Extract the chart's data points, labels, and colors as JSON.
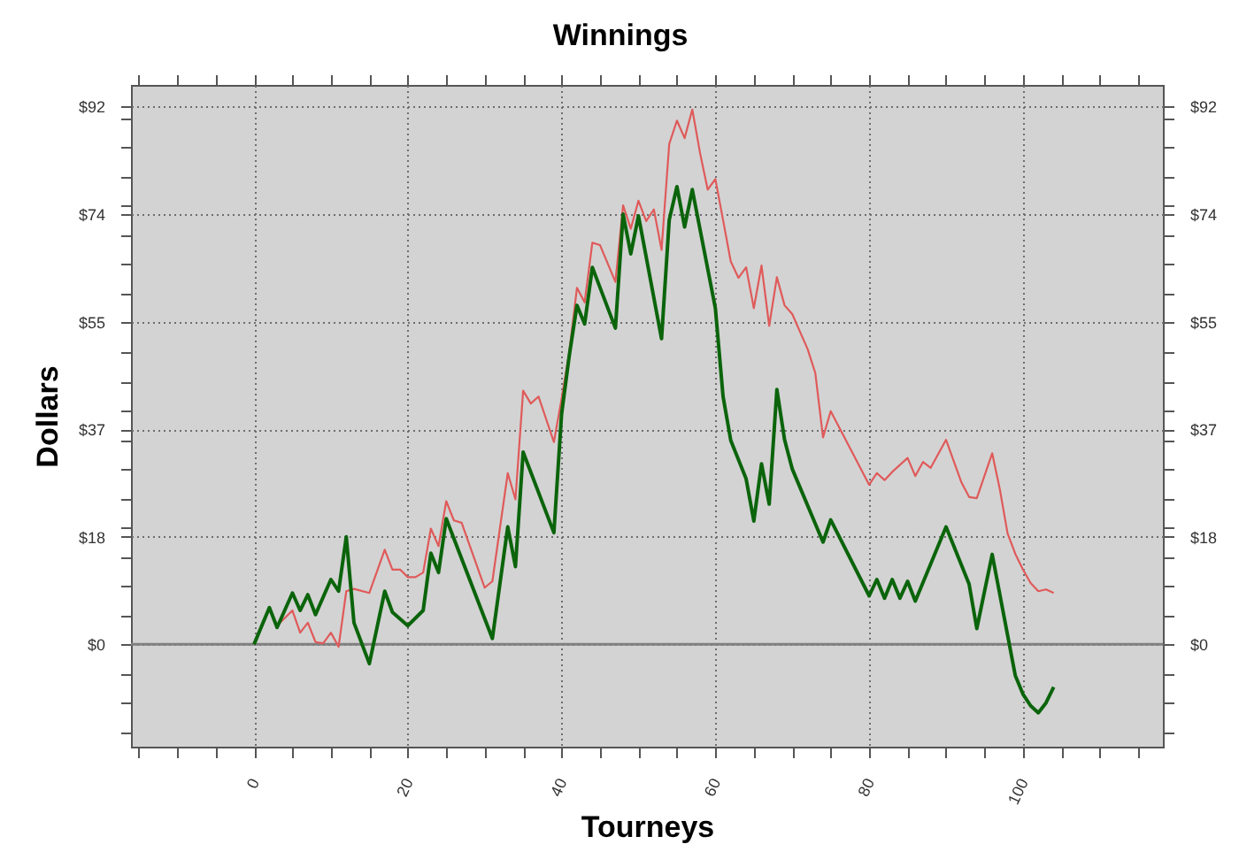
{
  "chart_data": {
    "type": "line",
    "title": "Winnings",
    "xlabel": "Tourneys",
    "ylabel": "Dollars",
    "xlim": [
      -16,
      118.2
    ],
    "xticks": [
      {
        "value": -15,
        "label": null
      },
      {
        "value": -10,
        "label": null
      },
      {
        "value": -5,
        "label": null
      },
      0,
      {
        "value": 5,
        "label": null
      },
      {
        "value": 10,
        "label": null
      },
      {
        "value": 15,
        "label": null
      },
      20,
      {
        "value": 25,
        "label": null
      },
      {
        "value": 30,
        "label": null
      },
      {
        "value": 35,
        "label": null
      },
      40,
      {
        "value": 45,
        "label": null
      },
      {
        "value": 50,
        "label": null
      },
      {
        "value": 55,
        "label": null
      },
      60,
      {
        "value": 65,
        "label": null
      },
      {
        "value": 70,
        "label": null
      },
      {
        "value": 75,
        "label": null
      },
      80,
      {
        "value": 85,
        "label": null
      },
      {
        "value": 90,
        "label": null
      },
      {
        "value": 95,
        "label": null
      },
      100,
      {
        "value": 105,
        "label": null
      },
      {
        "value": 110,
        "label": null
      },
      {
        "value": 115,
        "label": null
      }
    ],
    "ylim": [
      -17.5,
      95.7
    ],
    "yticks": [
      {
        "value": -15,
        "label": null
      },
      {
        "value": -10,
        "label": null
      },
      {
        "value": -5,
        "label": null
      },
      {
        "value": 0,
        "label": "$0"
      },
      {
        "value": 5,
        "label": null
      },
      {
        "value": 10,
        "label": null
      },
      {
        "value": 15,
        "label": null
      },
      {
        "value": 18.4,
        "label": "$18"
      },
      {
        "value": 20,
        "label": null
      },
      {
        "value": 25,
        "label": null
      },
      {
        "value": 30,
        "label": null
      },
      {
        "value": 35,
        "label": null
      },
      {
        "value": 36.8,
        "label": "$37"
      },
      {
        "value": 40,
        "label": null
      },
      {
        "value": 45,
        "label": null
      },
      {
        "value": 50,
        "label": null
      },
      {
        "value": 55,
        "label": null
      },
      {
        "value": 55.2,
        "label": "$55"
      },
      {
        "value": 60,
        "label": null
      },
      {
        "value": 65,
        "label": null
      },
      {
        "value": 70,
        "label": null
      },
      {
        "value": 73.6,
        "label": "$74"
      },
      {
        "value": 75,
        "label": null
      },
      {
        "value": 80,
        "label": null
      },
      {
        "value": 85,
        "label": null
      },
      {
        "value": 90,
        "label": null
      },
      {
        "value": 92,
        "label": "$92"
      }
    ],
    "y2lim": [
      -17.5,
      95.7
    ],
    "y2ticks": [
      {
        "value": -15,
        "label": null
      },
      {
        "value": -10,
        "label": null
      },
      {
        "value": -5,
        "label": null
      },
      {
        "value": 0,
        "label": "$0"
      },
      {
        "value": 5,
        "label": null
      },
      {
        "value": 10,
        "label": null
      },
      {
        "value": 15,
        "label": null
      },
      {
        "value": 18.4,
        "label": "$18"
      },
      {
        "value": 20,
        "label": null
      },
      {
        "value": 25,
        "label": null
      },
      {
        "value": 30,
        "label": null
      },
      {
        "value": 35,
        "label": null
      },
      {
        "value": 36.8,
        "label": "$37"
      },
      {
        "value": 40,
        "label": null
      },
      {
        "value": 45,
        "label": null
      },
      {
        "value": 50,
        "label": null
      },
      {
        "value": 55,
        "label": null
      },
      {
        "value": 55.2,
        "label": "$55"
      },
      {
        "value": 60,
        "label": null
      },
      {
        "value": 65,
        "label": null
      },
      {
        "value": 70,
        "label": null
      },
      {
        "value": 73.6,
        "label": "$74"
      },
      {
        "value": 75,
        "label": null
      },
      {
        "value": 80,
        "label": null
      },
      {
        "value": 85,
        "label": null
      },
      {
        "value": 90,
        "label": null
      },
      {
        "value": 92,
        "label": "$92"
      }
    ],
    "grid": true,
    "ref_lines": [
      {
        "axis": "y",
        "value": 0,
        "color": "#808080"
      }
    ],
    "series": [
      {
        "color": "#e05a5a",
        "x": [
          0,
          2,
          3,
          5,
          6,
          7,
          8,
          9,
          10,
          11,
          12,
          13,
          15,
          17,
          18,
          19,
          20,
          21,
          22,
          23,
          24,
          25,
          26,
          27,
          30,
          31,
          33,
          34,
          35,
          36,
          37,
          39,
          40,
          41,
          42,
          43,
          44,
          45,
          47,
          48,
          49,
          50,
          51,
          52,
          53,
          54,
          55,
          56,
          57,
          58,
          59,
          60,
          61,
          62,
          63,
          64,
          65,
          66,
          67,
          68,
          69,
          70,
          71,
          72,
          73,
          74,
          75,
          80,
          81,
          82,
          83,
          85,
          86,
          87,
          88,
          90,
          92,
          93,
          94,
          96,
          97,
          98,
          99,
          100,
          101,
          102,
          103,
          104
        ],
        "values": [
          0,
          6.1,
          3.2,
          5.8,
          2,
          3.7,
          0.4,
          0.2,
          2,
          -0.4,
          9.1,
          9.5,
          8.8,
          16.2,
          12.8,
          12.8,
          11.5,
          11.5,
          12.3,
          19.8,
          16.8,
          24.5,
          21.2,
          20.8,
          9.7,
          10.8,
          29.3,
          24.8,
          43.4,
          41.2,
          42.4,
          34.6,
          42,
          50,
          61,
          58.5,
          68.7,
          68.3,
          62,
          75.1,
          71.1,
          75.9,
          72.4,
          74.4,
          67.5,
          85.6,
          89.6,
          86.6,
          91.5,
          84.1,
          77.8,
          79.6,
          72.6,
          65.5,
          62.7,
          64.5,
          57.5,
          64.8,
          54.5,
          62.8,
          58,
          56.5,
          53.5,
          50.5,
          46.4,
          35.4,
          39.9,
          27.3,
          29.3,
          28.1,
          29.5,
          31.9,
          28.8,
          31.2,
          30.2,
          35,
          27.7,
          25.2,
          25,
          32.7,
          26.5,
          19,
          15.5,
          12.8,
          10.5,
          9.1,
          9.4,
          8.8
        ]
      },
      {
        "color": "#0b640b",
        "x": [
          0,
          2,
          3,
          5,
          6,
          7,
          8,
          10,
          11,
          12,
          13,
          15,
          17,
          18,
          20,
          22,
          23,
          24,
          25,
          31,
          33,
          34,
          35,
          39,
          40,
          41,
          42,
          43,
          44,
          47,
          48,
          49,
          50,
          53,
          54,
          55,
          56,
          57,
          60,
          61,
          62,
          63,
          64,
          65,
          66,
          67,
          68,
          69,
          70,
          74,
          75,
          80,
          81,
          82,
          83,
          84,
          85,
          86,
          90,
          93,
          94,
          96,
          99,
          100,
          101,
          102,
          103,
          104
        ],
        "values": [
          0,
          6.3,
          2.9,
          8.8,
          5.8,
          8.5,
          5.1,
          11.1,
          9.1,
          18.4,
          3.7,
          -3.3,
          9.1,
          5.5,
          3.2,
          5.8,
          15.6,
          12.3,
          21.5,
          1,
          20.1,
          13.3,
          32.9,
          19.1,
          39.4,
          49.4,
          58,
          54.8,
          64.5,
          54.1,
          73.6,
          66.8,
          73.3,
          52.3,
          72.6,
          78.3,
          71.4,
          77.8,
          57.5,
          42.4,
          34.9,
          31.6,
          28.3,
          21.1,
          30.9,
          24,
          43.6,
          35,
          30,
          17.5,
          21.3,
          8.3,
          11.1,
          7.9,
          11.1,
          7.9,
          10.8,
          7.4,
          20.1,
          10.3,
          2.7,
          15.4,
          -5.3,
          -8.5,
          -10.5,
          -11.7,
          -10,
          -7.3
        ]
      }
    ]
  }
}
